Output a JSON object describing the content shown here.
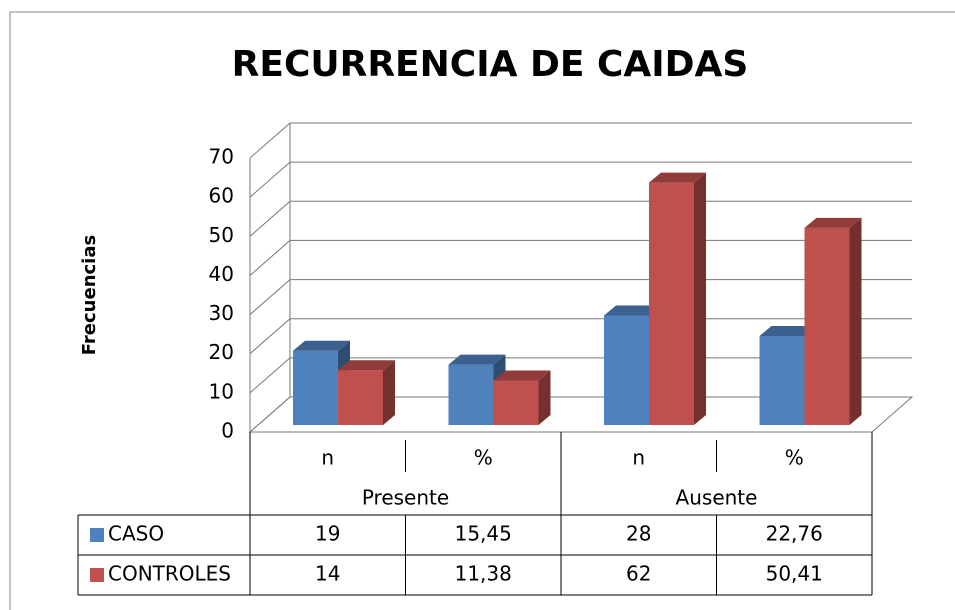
{
  "chart_data": {
    "type": "bar3d",
    "title": "RECURRENCIA DE CAIDAS",
    "ylabel": "Frecuencias",
    "categories": [
      "n",
      "%",
      "n",
      "%"
    ],
    "groups": [
      "Presente",
      "Ausente"
    ],
    "series": [
      {
        "name": "CASO",
        "color": "#4f81bd",
        "values": [
          19,
          15.45,
          28,
          22.76
        ],
        "value_labels": [
          "19",
          "15,45",
          "28",
          "22,76"
        ]
      },
      {
        "name": "CONTROLES",
        "color": "#c0504d",
        "values": [
          14,
          11.38,
          62,
          50.41
        ],
        "value_labels": [
          "14",
          "11,38",
          "62",
          "50,41"
        ]
      }
    ],
    "ylim": [
      0,
      70
    ],
    "yticks": [
      0,
      10,
      20,
      30,
      40,
      50,
      60,
      70
    ],
    "grid": true
  }
}
